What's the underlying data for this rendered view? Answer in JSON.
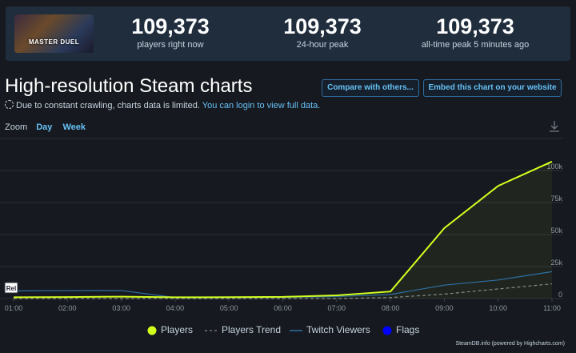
{
  "game": {
    "logo_text": "MASTER DUEL"
  },
  "stats": [
    {
      "value": "109,373",
      "label": "players right now"
    },
    {
      "value": "109,373",
      "label": "24-hour peak"
    },
    {
      "value": "109,373",
      "label": "all-time peak 5 minutes ago"
    }
  ],
  "chart_section": {
    "title": "High-resolution Steam charts",
    "compare_button": "Compare with others...",
    "embed_button": "Embed this chart on your website",
    "notice_text": "Due to constant crawling, charts data is limited.",
    "notice_link": "You can login to view full data.",
    "zoom_label": "Zoom",
    "zoom_day": "Day",
    "zoom_week": "Week"
  },
  "chart_data": {
    "type": "line",
    "x": [
      "01:00",
      "02:00",
      "03:00",
      "04:00",
      "05:00",
      "06:00",
      "07:00",
      "08:00",
      "09:00",
      "10:00",
      "11:00"
    ],
    "y_ticks": [
      "0",
      "25k",
      "50k",
      "75k",
      "100k"
    ],
    "ylim": [
      0,
      125000
    ],
    "flag_label": "Rel",
    "series": [
      {
        "name": "Players",
        "color": "#d3ff1f",
        "values": [
          1000,
          1200,
          1500,
          1000,
          1100,
          1300,
          2500,
          5500,
          55000,
          88000,
          107000
        ]
      },
      {
        "name": "Players Trend",
        "color": "#888888",
        "dashed": true,
        "values": [
          0,
          0,
          0,
          0,
          0,
          0,
          0,
          800,
          3500,
          7500,
          11500
        ]
      },
      {
        "name": "Twitch Viewers",
        "color": "#2f6fa5",
        "values": [
          6000,
          6200,
          6300,
          800,
          800,
          900,
          1600,
          3200,
          10500,
          14500,
          21000
        ]
      },
      {
        "name": "Flags",
        "color": "#0000ff"
      }
    ]
  },
  "credit": "SteamDB.info (powered by Highcharts.com)"
}
